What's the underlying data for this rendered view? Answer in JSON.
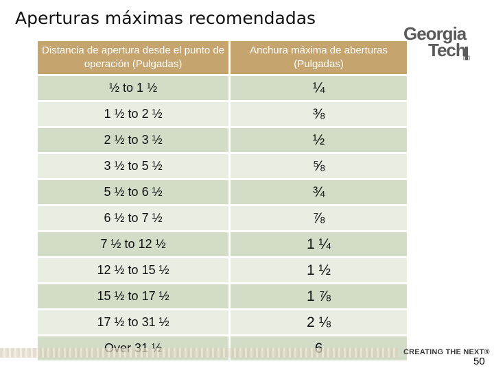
{
  "slide": {
    "title": "Aperturas máximas recomendadas",
    "page_number": "50",
    "footer_tagline": "CREATING THE NEXT®"
  },
  "logo": {
    "line1": "Georgia",
    "line2": "Tech",
    "icon": "tech-tower-icon",
    "color": "#5a5a5a"
  },
  "table": {
    "headers": [
      "Distancia de apertura desde el punto de operación (Pulgadas)",
      "Anchura máxima de aberturas (Pulgadas)"
    ],
    "rows": [
      [
        "½ to 1 ½",
        "¼"
      ],
      [
        "1 ½ to 2 ½",
        "⅜"
      ],
      [
        "2 ½ to 3 ½",
        "½"
      ],
      [
        "3 ½ to 5 ½",
        "⅝"
      ],
      [
        "5 ½ to 6 ½",
        "¾"
      ],
      [
        "6 ½ to 7 ½",
        "⅞"
      ],
      [
        "7 ½ to 12 ½",
        "1 ¼"
      ],
      [
        "12 ½ to 15 ½",
        "1 ½"
      ],
      [
        "15 ½ to 17 ½",
        "1 ⅞"
      ],
      [
        "17 ½ to 31 ½",
        "2 ⅛"
      ],
      [
        "Over 31 ½",
        "6"
      ]
    ],
    "colors": {
      "header": "#c5a46e",
      "row_dark": "#d2dcc7",
      "row_light": "#e9eee3"
    }
  }
}
